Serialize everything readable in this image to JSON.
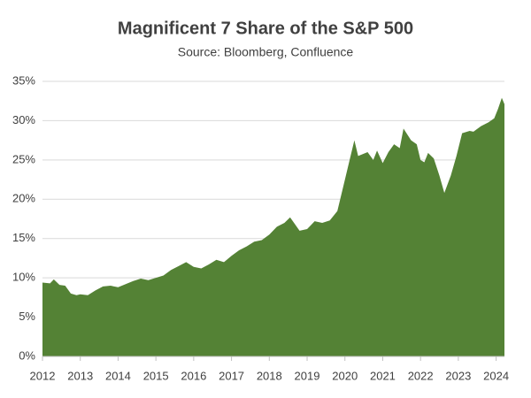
{
  "chart_data": {
    "type": "area",
    "title": "Magnificent 7 Share of the S&P 500",
    "subtitle": "Source: Bloomberg, Confluence",
    "color": "#548235",
    "grid": true,
    "x": [
      2012.0,
      2012.2,
      2012.3,
      2012.45,
      2012.6,
      2012.75,
      2012.9,
      2013.0,
      2013.2,
      2013.4,
      2013.6,
      2013.8,
      2014.0,
      2014.2,
      2014.4,
      2014.6,
      2014.8,
      2015.0,
      2015.2,
      2015.4,
      2015.6,
      2015.8,
      2016.0,
      2016.2,
      2016.4,
      2016.6,
      2016.8,
      2017.0,
      2017.2,
      2017.4,
      2017.6,
      2017.8,
      2018.0,
      2018.2,
      2018.4,
      2018.55,
      2018.8,
      2019.0,
      2019.2,
      2019.4,
      2019.6,
      2019.8,
      2020.0,
      2020.1,
      2020.25,
      2020.35,
      2020.6,
      2020.75,
      2020.85,
      2021.0,
      2021.15,
      2021.3,
      2021.45,
      2021.55,
      2021.75,
      2021.9,
      2022.0,
      2022.1,
      2022.2,
      2022.35,
      2022.5,
      2022.63,
      2022.8,
      2022.95,
      2023.1,
      2023.3,
      2023.4,
      2023.6,
      2023.8,
      2023.95,
      2024.05,
      2024.15,
      2024.22
    ],
    "values": [
      9.4,
      9.3,
      9.8,
      9.1,
      9.0,
      8.0,
      7.8,
      7.9,
      7.8,
      8.4,
      8.9,
      9.0,
      8.8,
      9.2,
      9.6,
      9.9,
      9.7,
      10.0,
      10.3,
      11.0,
      11.5,
      12.0,
      11.4,
      11.2,
      11.7,
      12.3,
      12.0,
      12.8,
      13.5,
      14.0,
      14.6,
      14.8,
      15.5,
      16.5,
      17.0,
      17.7,
      16.0,
      16.2,
      17.2,
      17.0,
      17.3,
      18.5,
      22.5,
      24.5,
      27.5,
      25.5,
      26.0,
      25.0,
      26.2,
      24.6,
      26.0,
      27.0,
      26.5,
      29.0,
      27.5,
      27.0,
      25.0,
      24.7,
      25.9,
      25.2,
      23.0,
      20.8,
      23.0,
      25.5,
      28.4,
      28.7,
      28.6,
      29.3,
      29.8,
      30.3,
      31.5,
      32.9,
      32.1
    ],
    "xlim": [
      2012,
      2024.22
    ],
    "xticks": [
      2012,
      2013,
      2014,
      2015,
      2016,
      2017,
      2018,
      2019,
      2020,
      2021,
      2022,
      2023,
      2024
    ],
    "ylim": [
      0,
      35
    ],
    "yticks": [
      {
        "value": 0,
        "label": "0%"
      },
      {
        "value": 5,
        "label": "5%"
      },
      {
        "value": 10,
        "label": "10%"
      },
      {
        "value": 15,
        "label": "15%"
      },
      {
        "value": 20,
        "label": "20%"
      },
      {
        "value": 25,
        "label": "25%"
      },
      {
        "value": 30,
        "label": "30%"
      },
      {
        "value": 35,
        "label": "35%"
      }
    ]
  }
}
